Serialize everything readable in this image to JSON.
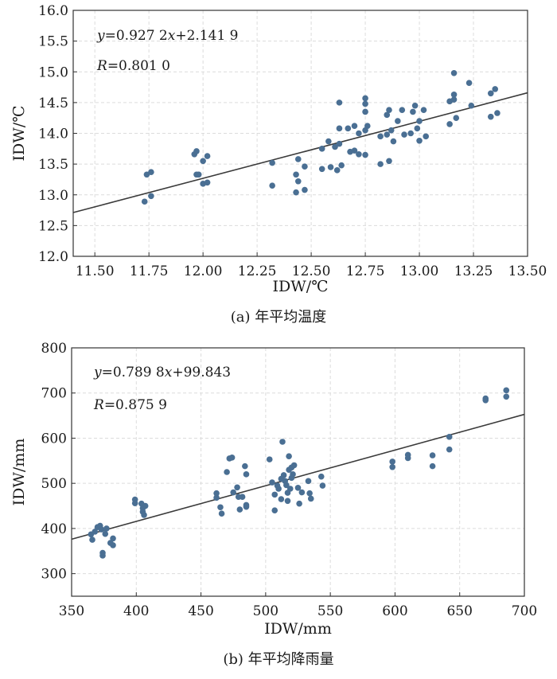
{
  "chart_data": [
    {
      "type": "scatter",
      "panel": "a",
      "caption": "(a) 年平均温度",
      "xlabel": "IDW/℃",
      "ylabel": "IDW/℃",
      "xlim": [
        11.4,
        13.5
      ],
      "ylim": [
        12.0,
        16.0
      ],
      "xticks": [
        "11.50",
        "11.75",
        "12.00",
        "12.25",
        "12.50",
        "12.75",
        "13.00",
        "13.25",
        "13.50"
      ],
      "xtick_values": [
        11.5,
        11.75,
        12.0,
        12.25,
        12.5,
        12.75,
        13.0,
        13.25,
        13.5
      ],
      "yticks": [
        "12.0",
        "12.5",
        "13.0",
        "13.5",
        "14.0",
        "14.5",
        "15.0",
        "15.5",
        "16.0"
      ],
      "ytick_values": [
        12.0,
        12.5,
        13.0,
        13.5,
        14.0,
        14.5,
        15.0,
        15.5,
        16.0
      ],
      "grid": true,
      "point_color": "#4a6f93",
      "line_color": "#3a3a3a",
      "equation_lines": [
        {
          "segments": [
            {
              "text": "y",
              "italic": true
            },
            {
              "text": "=0.927 2",
              "italic": false
            },
            {
              "text": "x",
              "italic": true
            },
            {
              "text": "+2.141 9",
              "italic": false
            }
          ]
        },
        {
          "segments": [
            {
              "text": "R",
              "italic": true
            },
            {
              "text": "=0.801 0",
              "italic": false
            }
          ]
        }
      ],
      "fit": {
        "slope": 0.9272,
        "intercept": 2.1419
      },
      "points": [
        [
          11.73,
          12.89
        ],
        [
          11.74,
          13.33
        ],
        [
          11.76,
          13.37
        ],
        [
          11.76,
          12.98
        ],
        [
          11.96,
          13.66
        ],
        [
          11.97,
          13.71
        ],
        [
          11.97,
          13.33
        ],
        [
          11.98,
          13.33
        ],
        [
          12.0,
          13.55
        ],
        [
          12.0,
          13.18
        ],
        [
          12.02,
          13.63
        ],
        [
          12.02,
          13.2
        ],
        [
          12.32,
          13.52
        ],
        [
          12.32,
          13.15
        ],
        [
          12.43,
          13.33
        ],
        [
          12.43,
          13.04
        ],
        [
          12.44,
          13.58
        ],
        [
          12.44,
          13.22
        ],
        [
          12.47,
          13.46
        ],
        [
          12.47,
          13.08
        ],
        [
          12.55,
          13.75
        ],
        [
          12.55,
          13.42
        ],
        [
          12.58,
          13.87
        ],
        [
          12.59,
          13.45
        ],
        [
          12.61,
          13.78
        ],
        [
          12.62,
          13.4
        ],
        [
          12.63,
          13.83
        ],
        [
          12.63,
          14.5
        ],
        [
          12.63,
          14.08
        ],
        [
          12.64,
          13.48
        ],
        [
          12.67,
          14.08
        ],
        [
          12.68,
          13.7
        ],
        [
          12.7,
          14.12
        ],
        [
          12.7,
          13.72
        ],
        [
          12.72,
          14.0
        ],
        [
          12.72,
          13.66
        ],
        [
          12.75,
          14.57
        ],
        [
          12.75,
          14.48
        ],
        [
          12.75,
          14.35
        ],
        [
          12.76,
          14.12
        ],
        [
          12.75,
          14.05
        ],
        [
          12.75,
          13.65
        ],
        [
          12.82,
          13.95
        ],
        [
          12.82,
          13.5
        ],
        [
          12.85,
          14.3
        ],
        [
          12.85,
          13.98
        ],
        [
          12.86,
          14.38
        ],
        [
          12.86,
          13.55
        ],
        [
          12.87,
          14.05
        ],
        [
          12.88,
          13.87
        ],
        [
          12.9,
          14.2
        ],
        [
          12.92,
          14.38
        ],
        [
          12.93,
          13.98
        ],
        [
          12.96,
          14.0
        ],
        [
          12.97,
          14.35
        ],
        [
          12.98,
          14.45
        ],
        [
          12.99,
          14.08
        ],
        [
          13.0,
          14.2
        ],
        [
          13.0,
          13.88
        ],
        [
          13.02,
          14.38
        ],
        [
          13.03,
          13.95
        ],
        [
          13.14,
          14.15
        ],
        [
          13.14,
          14.52
        ],
        [
          13.16,
          14.98
        ],
        [
          13.16,
          14.63
        ],
        [
          13.16,
          14.55
        ],
        [
          13.17,
          14.25
        ],
        [
          13.23,
          14.82
        ],
        [
          13.24,
          14.45
        ],
        [
          13.33,
          14.65
        ],
        [
          13.33,
          14.27
        ],
        [
          13.35,
          14.72
        ],
        [
          13.36,
          14.33
        ]
      ]
    },
    {
      "type": "scatter",
      "panel": "b",
      "caption": "(b) 年平均降雨量",
      "xlabel": "IDW/mm",
      "ylabel": "IDW/mm",
      "xlim": [
        350,
        700
      ],
      "ylim": [
        250,
        800
      ],
      "xticks": [
        "350",
        "400",
        "450",
        "500",
        "550",
        "600",
        "650",
        "700"
      ],
      "xtick_values": [
        350,
        400,
        450,
        500,
        550,
        600,
        650,
        700
      ],
      "yticks": [
        "300",
        "400",
        "500",
        "600",
        "700",
        "800"
      ],
      "ytick_values": [
        300,
        400,
        500,
        600,
        700,
        800
      ],
      "grid": true,
      "point_color": "#4a6f93",
      "line_color": "#3a3a3a",
      "equation_lines": [
        {
          "segments": [
            {
              "text": "y",
              "italic": true
            },
            {
              "text": "=0.789 8",
              "italic": false
            },
            {
              "text": "x",
              "italic": true
            },
            {
              "text": "+99.843",
              "italic": false
            }
          ]
        },
        {
          "segments": [
            {
              "text": "R",
              "italic": true
            },
            {
              "text": "=0.875 9",
              "italic": false
            }
          ]
        }
      ],
      "fit": {
        "slope": 0.7898,
        "intercept": 99.843
      },
      "points": [
        [
          365,
          387
        ],
        [
          366,
          375
        ],
        [
          368,
          393
        ],
        [
          370,
          403
        ],
        [
          372,
          406
        ],
        [
          373,
          398
        ],
        [
          374,
          346
        ],
        [
          374,
          340
        ],
        [
          376,
          388
        ],
        [
          377,
          400
        ],
        [
          380,
          368
        ],
        [
          382,
          378
        ],
        [
          382,
          363
        ],
        [
          399,
          464
        ],
        [
          399,
          456
        ],
        [
          404,
          455
        ],
        [
          405,
          445
        ],
        [
          405,
          437
        ],
        [
          406,
          430
        ],
        [
          407,
          450
        ],
        [
          462,
          478
        ],
        [
          462,
          468
        ],
        [
          465,
          447
        ],
        [
          466,
          433
        ],
        [
          470,
          525
        ],
        [
          472,
          555
        ],
        [
          474,
          557
        ],
        [
          475,
          480
        ],
        [
          478,
          491
        ],
        [
          479,
          470
        ],
        [
          480,
          442
        ],
        [
          482,
          470
        ],
        [
          484,
          538
        ],
        [
          485,
          520
        ],
        [
          485,
          452
        ],
        [
          485,
          448
        ],
        [
          503,
          553
        ],
        [
          505,
          502
        ],
        [
          507,
          475
        ],
        [
          507,
          440
        ],
        [
          509,
          495
        ],
        [
          510,
          488
        ],
        [
          512,
          510
        ],
        [
          512,
          465
        ],
        [
          513,
          592
        ],
        [
          514,
          518
        ],
        [
          515,
          505
        ],
        [
          516,
          496
        ],
        [
          517,
          479
        ],
        [
          517,
          461
        ],
        [
          518,
          560
        ],
        [
          518,
          530
        ],
        [
          519,
          488
        ],
        [
          520,
          535
        ],
        [
          520,
          512
        ],
        [
          521,
          520
        ],
        [
          522,
          540
        ],
        [
          525,
          490
        ],
        [
          526,
          455
        ],
        [
          528,
          480
        ],
        [
          533,
          505
        ],
        [
          534,
          478
        ],
        [
          535,
          466
        ],
        [
          543,
          515
        ],
        [
          544,
          495
        ],
        [
          598,
          548
        ],
        [
          598,
          536
        ],
        [
          610,
          563
        ],
        [
          610,
          556
        ],
        [
          629,
          562
        ],
        [
          629,
          538
        ],
        [
          642,
          603
        ],
        [
          642,
          575
        ],
        [
          670,
          688
        ],
        [
          670,
          684
        ],
        [
          686,
          706
        ],
        [
          686,
          692
        ]
      ]
    }
  ]
}
